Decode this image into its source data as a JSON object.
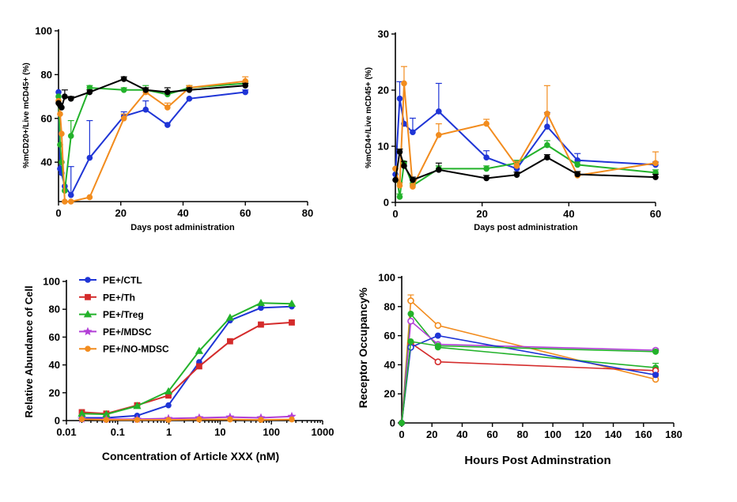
{
  "colors": {
    "blue": "#1f35d6",
    "red": "#d42b2b",
    "green": "#23b22b",
    "purple": "#b23fd6",
    "orange": "#f28c1e",
    "black": "#000000"
  },
  "chart_data": [
    {
      "type": "line",
      "xlabel": "Days post administration",
      "ylabel": "%mCD20+/Live mCD45+ (%)",
      "xlim": [
        0,
        80
      ],
      "ylim": [
        22,
        100
      ],
      "xticks": [
        0,
        20,
        40,
        60,
        80
      ],
      "yticks": [
        40,
        60,
        80,
        100
      ],
      "series": [
        {
          "color": "blue",
          "x": [
            0,
            0.5,
            1,
            2,
            4,
            10,
            21,
            28,
            35,
            42,
            60
          ],
          "y": [
            72,
            37,
            35,
            29,
            25,
            42,
            61,
            64,
            57,
            69,
            72
          ],
          "err": [
            0,
            0,
            0,
            0,
            13,
            17,
            2,
            4,
            1,
            0,
            1
          ]
        },
        {
          "color": "green",
          "x": [
            0,
            0.5,
            1,
            2,
            4,
            10,
            21,
            28,
            35,
            42,
            60
          ],
          "y": [
            70,
            48,
            40,
            27,
            52,
            74,
            73,
            73,
            71,
            74,
            76
          ],
          "err": [
            0,
            0,
            0,
            0,
            7,
            1,
            1,
            2,
            1,
            1,
            1
          ]
        },
        {
          "color": "orange",
          "x": [
            0,
            0.5,
            1,
            2,
            4,
            10,
            21,
            28,
            35,
            42,
            60
          ],
          "y": [
            68,
            62,
            53,
            22,
            22,
            24,
            60,
            72,
            65,
            74,
            77
          ],
          "err": [
            0,
            0,
            0,
            0,
            0,
            0,
            2,
            2,
            2,
            1,
            2
          ]
        },
        {
          "color": "black",
          "x": [
            0,
            0.5,
            1,
            2,
            4,
            10,
            21,
            28,
            35,
            42,
            60
          ],
          "y": [
            67,
            66,
            65,
            70,
            69,
            72,
            78,
            73,
            72,
            73,
            75
          ],
          "err": [
            0,
            0,
            0,
            3,
            1,
            1,
            1,
            1,
            2,
            1,
            1
          ]
        }
      ]
    },
    {
      "type": "line",
      "xlabel": "Days post administration",
      "ylabel": "%mCD4+/Live mCD45+ (%)",
      "xlim": [
        0,
        60
      ],
      "ylim": [
        0,
        30
      ],
      "xticks": [
        0,
        20,
        40,
        60
      ],
      "yticks": [
        0,
        10,
        20,
        30
      ],
      "series": [
        {
          "color": "blue",
          "x": [
            0,
            1,
            2,
            4,
            10,
            21,
            28,
            35,
            42,
            60
          ],
          "y": [
            5,
            18.5,
            14,
            12.5,
            16.2,
            8,
            6,
            13.5,
            7.5,
            6.7
          ],
          "err": [
            0,
            3,
            0,
            2.5,
            5,
            1.2,
            0.5,
            2.5,
            1.2,
            0.5
          ]
        },
        {
          "color": "green",
          "x": [
            0,
            1,
            2,
            4,
            10,
            21,
            28,
            35,
            42,
            60
          ],
          "y": [
            6,
            1,
            7,
            3,
            6,
            6,
            7,
            10.2,
            6.7,
            5.3
          ],
          "err": [
            0,
            0.5,
            0,
            0.5,
            0.5,
            0.5,
            0.5,
            0.8,
            0.5,
            0.5
          ]
        },
        {
          "color": "orange",
          "x": [
            0,
            1,
            2,
            4,
            10,
            21,
            28,
            35,
            42,
            60
          ],
          "y": [
            6,
            3,
            21.2,
            2.8,
            12,
            14,
            6.5,
            15.8,
            4.8,
            7
          ],
          "err": [
            0,
            0.5,
            3,
            0.5,
            2,
            0.8,
            0.8,
            5,
            0.5,
            2
          ]
        },
        {
          "color": "black",
          "x": [
            0,
            1,
            2,
            4,
            10,
            21,
            28,
            35,
            42,
            60
          ],
          "y": [
            4,
            9,
            6.5,
            4,
            5.8,
            4.3,
            4.9,
            8,
            5,
            4.5
          ],
          "err": [
            0,
            0.5,
            0.8,
            0.5,
            1.2,
            0.5,
            0.5,
            0.5,
            0.5,
            0.5
          ]
        }
      ]
    },
    {
      "type": "line",
      "xscale": "log",
      "xlabel": "Concentration of Article XXX (nM)",
      "ylabel": "Relative Abundance of Cell",
      "xlim": [
        0.01,
        1000
      ],
      "ylim": [
        0,
        100
      ],
      "xticks": [
        0.01,
        0.1,
        1,
        10,
        100,
        1000
      ],
      "xticklabels": [
        "0.01",
        "0.1",
        "1",
        "10",
        "100",
        "1000"
      ],
      "yticks": [
        0,
        20,
        40,
        60,
        80,
        100
      ],
      "legend": "top-left",
      "series": [
        {
          "name": "PE+/CTL",
          "color": "blue",
          "marker": "circle",
          "x": [
            0.02,
            0.06,
            0.24,
            0.98,
            3.9,
            15.6,
            62.5,
            250
          ],
          "y": [
            2,
            2,
            3.5,
            11,
            42,
            72,
            81,
            82
          ]
        },
        {
          "name": "PE+/Th",
          "color": "red",
          "marker": "square",
          "x": [
            0.02,
            0.06,
            0.24,
            0.98,
            3.9,
            15.6,
            62.5,
            250
          ],
          "y": [
            6,
            5,
            11,
            18,
            39,
            57,
            69,
            70.5
          ]
        },
        {
          "name": "PE+/Treg",
          "color": "green",
          "marker": "triangle",
          "x": [
            0.02,
            0.06,
            0.24,
            0.98,
            3.9,
            15.6,
            62.5,
            250
          ],
          "y": [
            5,
            4.5,
            10.5,
            21,
            50,
            74,
            84.5,
            84
          ]
        },
        {
          "name": "PE+/MDSC",
          "color": "purple",
          "marker": "star",
          "x": [
            0.02,
            0.06,
            0.24,
            0.98,
            3.9,
            15.6,
            62.5,
            250
          ],
          "y": [
            1,
            1,
            1,
            1.5,
            2,
            2.5,
            2,
            3
          ]
        },
        {
          "name": "PE+/NO-MDSC",
          "color": "orange",
          "marker": "circle",
          "x": [
            0.02,
            0.06,
            0.24,
            0.98,
            3.9,
            15.6,
            62.5,
            250
          ],
          "y": [
            1,
            0.5,
            0.5,
            0.5,
            0.8,
            0.8,
            0.5,
            0.8
          ]
        }
      ]
    },
    {
      "type": "line",
      "xlabel": "Hours Post Adminstration",
      "ylabel": "Receptor Occupancy%",
      "xlim": [
        0,
        180
      ],
      "ylim": [
        0,
        100
      ],
      "xticks": [
        0,
        20,
        40,
        60,
        80,
        100,
        120,
        140,
        160,
        180
      ],
      "yticks": [
        0,
        20,
        40,
        60,
        80,
        100
      ],
      "series": [
        {
          "color": "orange",
          "x": [
            0,
            6,
            24,
            168
          ],
          "y": [
            0,
            84,
            67,
            30
          ],
          "err": [
            0,
            4,
            0,
            2
          ]
        },
        {
          "color": "green",
          "x": [
            0,
            6,
            24,
            168
          ],
          "y": [
            0,
            75,
            52,
            38
          ],
          "err": [
            0,
            0,
            0,
            3
          ]
        },
        {
          "color": "purple",
          "x": [
            0,
            6,
            24,
            168
          ],
          "y": [
            0,
            70,
            54,
            50
          ],
          "err": [
            0,
            0,
            0,
            1
          ]
        },
        {
          "color": "red",
          "x": [
            0,
            6,
            24,
            168
          ],
          "y": [
            0,
            55,
            42,
            36
          ],
          "err": [
            0,
            0,
            0,
            1
          ]
        },
        {
          "color": "blue",
          "x": [
            0,
            6,
            24,
            168
          ],
          "y": [
            0,
            52,
            60,
            33
          ],
          "err": [
            0,
            0,
            0,
            1
          ]
        },
        {
          "color": "green",
          "x": [
            0,
            6,
            24,
            168
          ],
          "y": [
            0,
            56,
            53,
            49
          ],
          "err": [
            0,
            0,
            0,
            1
          ]
        }
      ]
    }
  ]
}
